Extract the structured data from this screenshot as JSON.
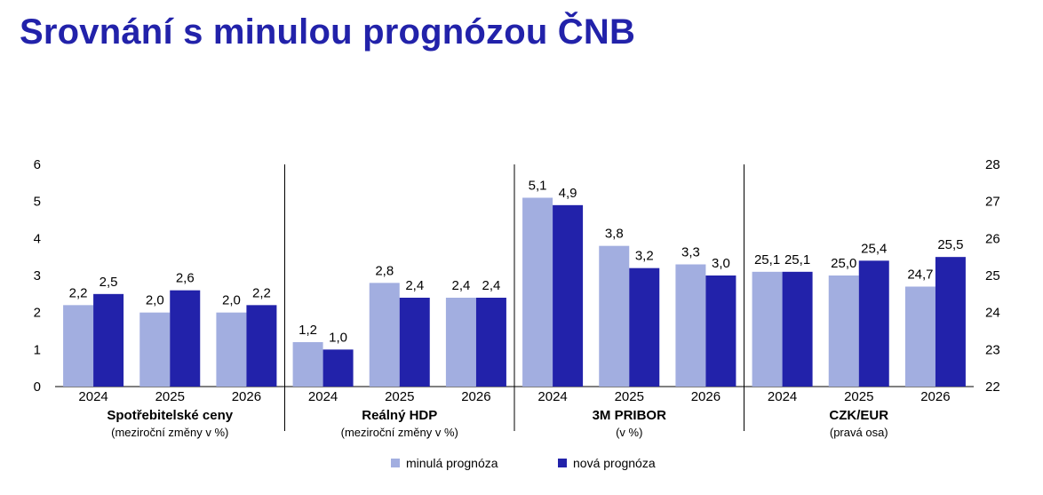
{
  "title": "Srovnání s minulou prognózou ČNB",
  "colors": {
    "title": "#2222aa",
    "old": "#a2aee0",
    "new": "#2222aa",
    "axis": "#000000"
  },
  "chart_data": {
    "type": "bar",
    "left_axis": {
      "min": 0,
      "max": 6,
      "ticks": [
        "0",
        "1",
        "2",
        "3",
        "4",
        "5",
        "6"
      ]
    },
    "right_axis": {
      "min": 22,
      "max": 28,
      "ticks": [
        "22",
        "23",
        "24",
        "25",
        "26",
        "27",
        "28"
      ]
    },
    "grid": false,
    "legend_placement": "bottom",
    "series_names": [
      "minulá prognóza",
      "nová prognóza"
    ],
    "groups": [
      {
        "title": "Spotřebitelské ceny",
        "subtitle": "(meziroční změny v %)",
        "axis": "left",
        "categories": [
          "2024",
          "2025",
          "2026"
        ],
        "old": [
          2.2,
          2.0,
          2.0
        ],
        "new": [
          2.5,
          2.6,
          2.2
        ],
        "old_labels": [
          "2,2",
          "2,0",
          "2,0"
        ],
        "new_labels": [
          "2,5",
          "2,6",
          "2,2"
        ]
      },
      {
        "title": "Reálný HDP",
        "subtitle": "(meziroční změny v %)",
        "axis": "left",
        "categories": [
          "2024",
          "2025",
          "2026"
        ],
        "old": [
          1.2,
          2.8,
          2.4
        ],
        "new": [
          1.0,
          2.4,
          2.4
        ],
        "old_labels": [
          "1,2",
          "2,8",
          "2,4"
        ],
        "new_labels": [
          "1,0",
          "2,4",
          "2,4"
        ]
      },
      {
        "title": "3M PRIBOR",
        "subtitle": "(v %)",
        "axis": "left",
        "categories": [
          "2024",
          "2025",
          "2026"
        ],
        "old": [
          5.1,
          3.8,
          3.3
        ],
        "new": [
          4.9,
          3.2,
          3.0
        ],
        "old_labels": [
          "5,1",
          "3,8",
          "3,3"
        ],
        "new_labels": [
          "4,9",
          "3,2",
          "3,0"
        ]
      },
      {
        "title": "CZK/EUR",
        "subtitle": "(pravá osa)",
        "axis": "right",
        "categories": [
          "2024",
          "2025",
          "2026"
        ],
        "old": [
          25.1,
          25.0,
          24.7
        ],
        "new": [
          25.1,
          25.4,
          25.5
        ],
        "old_labels": [
          "25,1",
          "25,0",
          "24,7"
        ],
        "new_labels": [
          "25,1",
          "25,4",
          "25,5"
        ]
      }
    ]
  }
}
